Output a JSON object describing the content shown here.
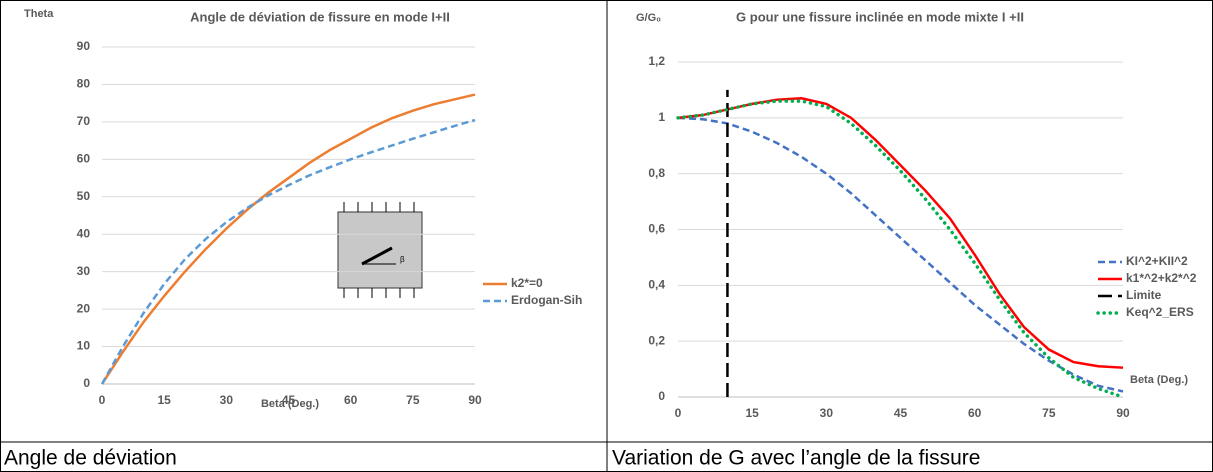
{
  "chart_data": [
    {
      "type": "line",
      "title": "Angle de déviation de fissure en mode I+II",
      "y_label": "Theta",
      "x_label": "Beta (Deg.)",
      "x": [
        0,
        5,
        10,
        15,
        20,
        25,
        30,
        35,
        40,
        45,
        50,
        55,
        60,
        65,
        70,
        75,
        80,
        85,
        90
      ],
      "series": [
        {
          "name": "k2*=0",
          "color": "#ed7d31",
          "style": "solid",
          "values": [
            0,
            8.5,
            16.5,
            23.5,
            30,
            36,
            41.5,
            46.5,
            51,
            55,
            59,
            62.5,
            65.5,
            68.5,
            71,
            73,
            74.7,
            76,
            77.3
          ]
        },
        {
          "name": "Erdogan-Sih",
          "color": "#5b9bd5",
          "style": "dashed",
          "values": [
            0,
            9.9,
            18.9,
            26.7,
            33.3,
            38.7,
            43.2,
            47,
            50.3,
            53.1,
            55.7,
            57.9,
            60,
            61.9,
            63.7,
            65.5,
            67.2,
            68.9,
            70.5
          ]
        }
      ],
      "xlim": [
        0,
        90
      ],
      "ylim": [
        0,
        90
      ],
      "xticks": [
        0,
        15,
        30,
        45,
        60,
        75,
        90
      ],
      "yticks": [
        0,
        10,
        20,
        30,
        40,
        50,
        60,
        70,
        80,
        90
      ],
      "grid": true,
      "legend": "right",
      "inset_label": "β"
    },
    {
      "type": "line",
      "title": "G pour une fissure inclinée en mode mixte I +II",
      "y_label": "G/G₀",
      "x_label": "Beta (Deg.)",
      "x": [
        0,
        5,
        10,
        15,
        20,
        25,
        30,
        35,
        40,
        45,
        50,
        55,
        60,
        65,
        70,
        75,
        80,
        85,
        90
      ],
      "series": [
        {
          "name": "KI^2+KII^2",
          "color": "#4472c4",
          "style": "dashed",
          "values": [
            1,
            0.995,
            0.98,
            0.95,
            0.91,
            0.86,
            0.8,
            0.73,
            0.65,
            0.57,
            0.49,
            0.41,
            0.33,
            0.26,
            0.19,
            0.13,
            0.08,
            0.04,
            0.02
          ]
        },
        {
          "name": "k1*^2+k2*^2",
          "color": "#ff0000",
          "style": "solid",
          "values": [
            1,
            1.01,
            1.03,
            1.05,
            1.065,
            1.07,
            1.05,
            1.0,
            0.92,
            0.83,
            0.74,
            0.64,
            0.51,
            0.37,
            0.25,
            0.17,
            0.125,
            0.11,
            0.105
          ]
        },
        {
          "name": "Limite",
          "color": "#000000",
          "style": "longdash",
          "x": [
            10,
            10
          ],
          "values": [
            0,
            1.1
          ]
        },
        {
          "name": "Keq^2_ERS",
          "color": "#00b050",
          "style": "dotted",
          "values": [
            1,
            1.01,
            1.03,
            1.05,
            1.06,
            1.06,
            1.04,
            0.98,
            0.9,
            0.81,
            0.71,
            0.6,
            0.48,
            0.35,
            0.23,
            0.14,
            0.07,
            0.03,
            0
          ]
        }
      ],
      "xlim": [
        0,
        90
      ],
      "ylim": [
        0,
        1.2
      ],
      "xticks": [
        0,
        15,
        30,
        45,
        60,
        75,
        90
      ],
      "yticks": [
        0,
        {
          "value": 0.2,
          "label": "0,2"
        },
        {
          "value": 0.4,
          "label": "0,4"
        },
        {
          "value": 0.6,
          "label": "0,6"
        },
        {
          "value": 0.8,
          "label": "0,8"
        },
        1,
        {
          "value": 1.2,
          "label": "1,2"
        }
      ],
      "grid": true,
      "legend": "right"
    }
  ],
  "captions": [
    "Angle de déviation",
    "Variation de G avec l’angle de la fissure"
  ]
}
